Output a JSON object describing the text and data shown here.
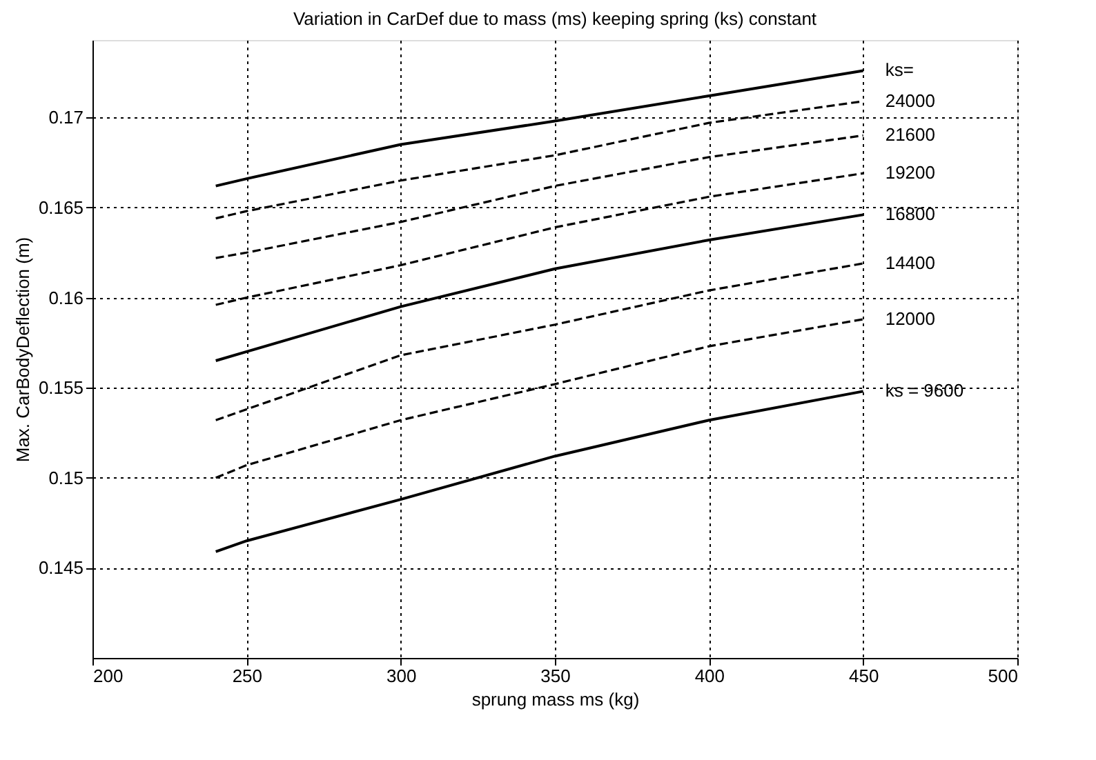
{
  "chart_data": {
    "type": "line",
    "title": "Variation in CarDef due to mass (ms) keeping spring (ks) constant",
    "xlabel": "sprung mass ms (kg)",
    "ylabel": "Max. CarBodyDeflection (m)",
    "x": [
      240,
      250,
      300,
      350,
      400,
      450
    ],
    "series": [
      {
        "name": "ks=",
        "color": "#000000",
        "line_style": "solid",
        "values": [
          0.1662,
          0.1666,
          0.1685,
          0.1698,
          0.1712,
          0.1726
        ]
      },
      {
        "name": "24000",
        "color": "#000000",
        "line_style": "dashed",
        "values": [
          0.1644,
          0.1648,
          0.1665,
          0.1679,
          0.1697,
          0.1709
        ]
      },
      {
        "name": "21600",
        "color": "#000000",
        "line_style": "dashed",
        "values": [
          0.1622,
          0.1625,
          0.1642,
          0.1662,
          0.1678,
          0.169
        ]
      },
      {
        "name": "19200",
        "color": "#000000",
        "line_style": "dashed",
        "values": [
          0.1596,
          0.16,
          0.1618,
          0.1639,
          0.1656,
          0.1669
        ]
      },
      {
        "name": "16800",
        "color": "#000000",
        "line_style": "solid",
        "values": [
          0.1565,
          0.157,
          0.1595,
          0.1616,
          0.1632,
          0.1646
        ]
      },
      {
        "name": "14400",
        "color": "#000000",
        "line_style": "dashed",
        "values": [
          0.1532,
          0.1538,
          0.1568,
          0.1585,
          0.1604,
          0.1619
        ]
      },
      {
        "name": "12000",
        "color": "#000000",
        "line_style": "dashed",
        "values": [
          0.15,
          0.1507,
          0.1532,
          0.1552,
          0.1573,
          0.1588
        ]
      },
      {
        "name": "ks = 9600",
        "color": "#000000",
        "line_style": "solid",
        "values": [
          0.1459,
          0.1465,
          0.1488,
          0.1512,
          0.1532,
          0.1548
        ]
      }
    ],
    "xlim": [
      200,
      500
    ],
    "xticks": [
      200,
      250,
      300,
      350,
      400,
      450,
      500
    ],
    "ylim": [
      0.14,
      0.1743
    ],
    "yticks": [
      0.145,
      0.15,
      0.155,
      0.16,
      0.165,
      0.17
    ],
    "grid": true,
    "marker": "none",
    "legend": false
  }
}
